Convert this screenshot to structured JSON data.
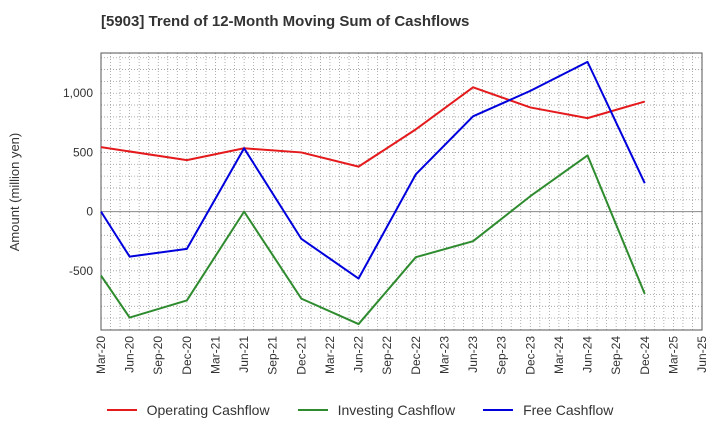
{
  "chart_data": {
    "type": "line",
    "title": "[5903]  Trend of 12-Month Moving Sum of Cashflows",
    "xlabel": "",
    "ylabel": "Amount (million yen)",
    "categories": [
      "Mar-20",
      "Jun-20",
      "Sep-20",
      "Dec-20",
      "Mar-21",
      "Jun-21",
      "Sep-21",
      "Dec-21",
      "Mar-22",
      "Jun-22",
      "Sep-22",
      "Dec-22",
      "Mar-23",
      "Jun-23",
      "Sep-23",
      "Dec-23",
      "Mar-24",
      "Jun-24",
      "Sep-24",
      "Dec-24",
      "Mar-25",
      "Jun-25"
    ],
    "ylim": [
      -1000,
      1340
    ],
    "yticks": [
      -500,
      0,
      500,
      1000
    ],
    "ytick_labels": [
      "-500",
      "0",
      "500",
      "1,000"
    ],
    "grid": true,
    "legend_position": "bottom",
    "series": [
      {
        "name": "Operating Cashflow",
        "color": "#e41a1c",
        "values": [
          545,
          null,
          null,
          435,
          null,
          535,
          null,
          500,
          null,
          380,
          null,
          695,
          null,
          1050,
          null,
          880,
          null,
          790,
          null,
          930,
          null,
          null
        ]
      },
      {
        "name": "Investing Cashflow",
        "color": "#2e8b2e",
        "values": [
          -540,
          -895,
          null,
          -750,
          null,
          0,
          null,
          -735,
          null,
          -950,
          null,
          -385,
          null,
          -250,
          null,
          130,
          null,
          475,
          null,
          -695,
          null,
          null
        ]
      },
      {
        "name": "Free Cashflow",
        "color": "#0000dd",
        "values": [
          0,
          -380,
          null,
          -315,
          null,
          535,
          null,
          -230,
          null,
          -565,
          null,
          315,
          null,
          805,
          null,
          1020,
          null,
          1265,
          null,
          240,
          null,
          null
        ]
      }
    ]
  }
}
